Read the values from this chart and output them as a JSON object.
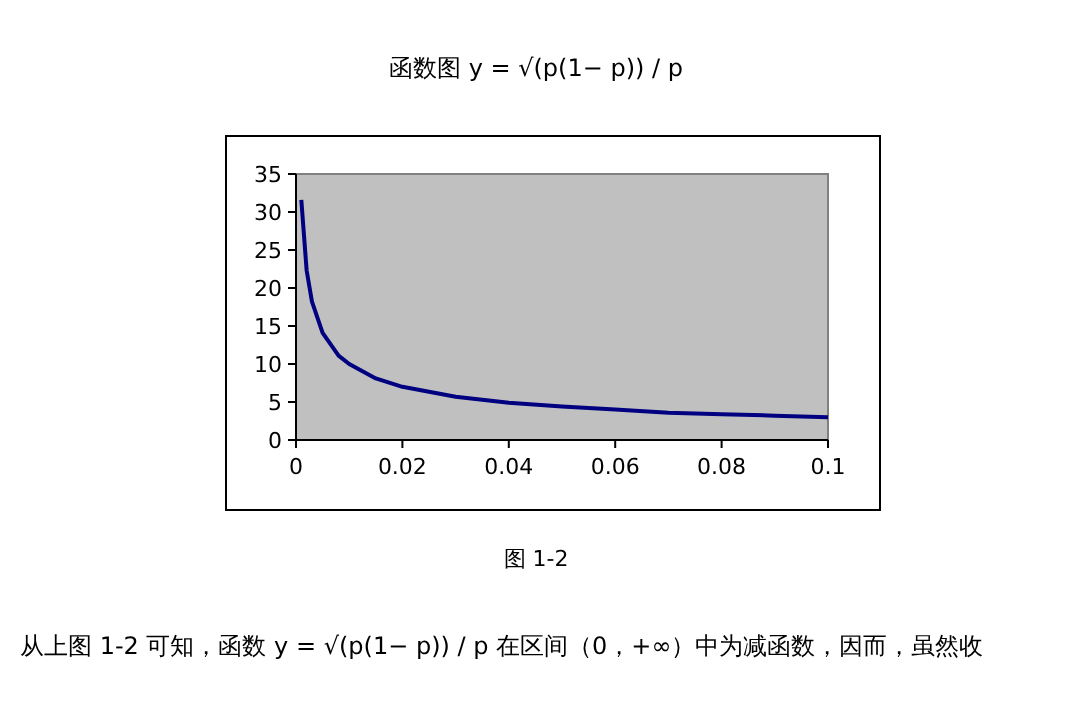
{
  "chart_data": {
    "type": "line",
    "title": "函数图 y = √(p(1− p)) / p",
    "x": [
      0.001,
      0.002,
      0.003,
      0.005,
      0.008,
      0.01,
      0.015,
      0.02,
      0.03,
      0.04,
      0.05,
      0.06,
      0.07,
      0.08,
      0.09,
      0.1
    ],
    "series": [
      {
        "color": "#000080",
        "values": [
          31.6,
          22.3,
          18.2,
          14.1,
          11.1,
          10,
          8.1,
          7,
          5.7,
          4.9,
          4.4,
          4,
          3.6,
          3.4,
          3.2,
          3
        ]
      }
    ],
    "xlim": [
      0,
      0.1
    ],
    "xticks": [
      0,
      0.02,
      0.04,
      0.06,
      0.08,
      0.1
    ],
    "ylim": [
      0,
      35
    ],
    "yticks": [
      0,
      5,
      10,
      15,
      20,
      25,
      30,
      35
    ],
    "grid": false,
    "marker": "none",
    "line_style": "solid",
    "annotations": [
      "图 1-2",
      "从上图 1-2 可知，函数 y = √(p(1− p)) / p 在区间（0，+∞）中为减函数，因而，虽然收"
    ]
  }
}
